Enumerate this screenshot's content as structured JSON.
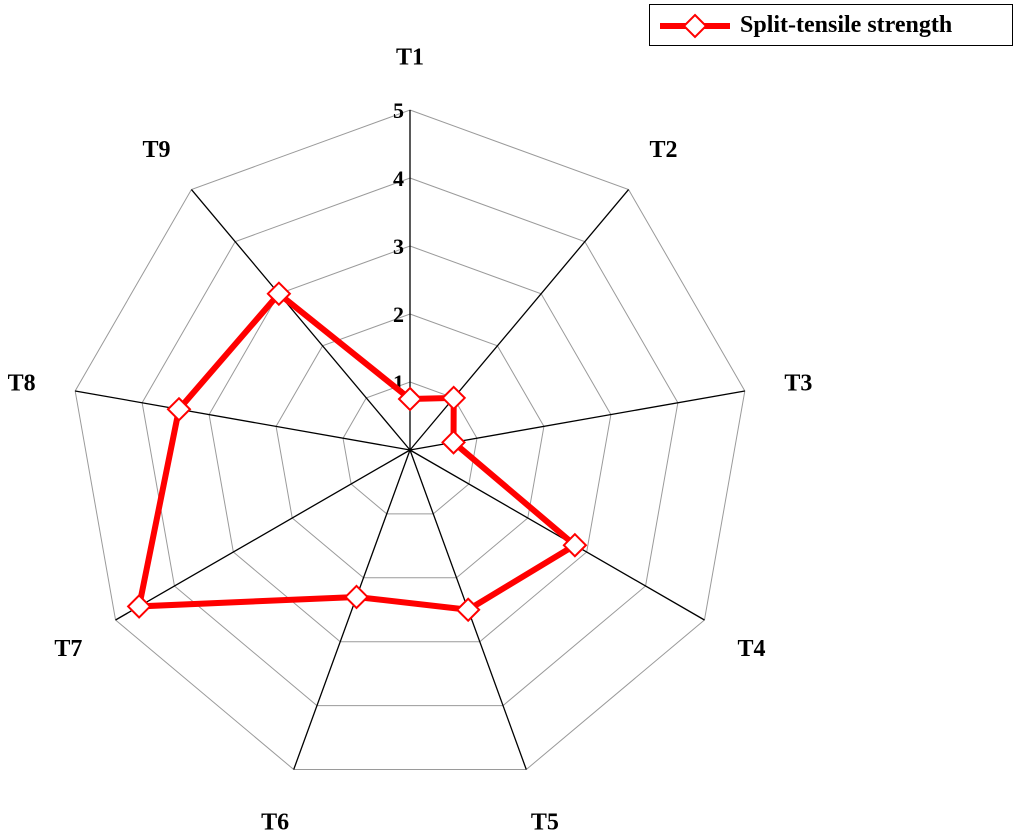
{
  "chart_data": {
    "type": "radar",
    "title": "",
    "categories": [
      "T1",
      "T2",
      "T3",
      "T4",
      "T5",
      "T6",
      "T7",
      "T8",
      "T9"
    ],
    "radial_ticks": [
      "1",
      "2",
      "3",
      "4",
      "5"
    ],
    "range": [
      0,
      5
    ],
    "series": [
      {
        "name": "Split-tensile strength",
        "values": [
          0.75,
          1.0,
          0.65,
          2.8,
          2.5,
          2.3,
          4.6,
          3.45,
          3.0
        ],
        "color": "#ff0000",
        "marker": "diamond-open"
      }
    ],
    "legend_position": "top-right",
    "grid": true
  },
  "legend": {
    "label": "Split-tensile strength"
  }
}
